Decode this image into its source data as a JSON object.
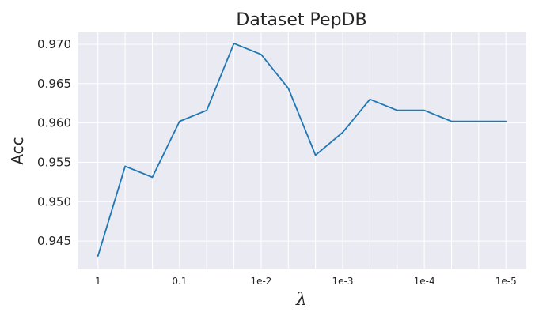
{
  "chart_data": {
    "type": "line",
    "title": "Dataset PepDB",
    "xlabel": "λ",
    "ylabel": "Acc",
    "x_ticks": [
      "1",
      "0.1",
      "1e-2",
      "1e-3",
      "1e-4",
      "1e-5"
    ],
    "x_tick_positions": [
      1,
      4,
      7,
      10,
      13,
      16
    ],
    "ylim": [
      0.9415,
      0.9715
    ],
    "y_ticks": [
      0.945,
      0.95,
      0.955,
      0.96,
      0.965,
      0.97
    ],
    "y_tick_labels": [
      "0.945",
      "0.950",
      "0.955",
      "0.960",
      "0.965",
      "0.970"
    ],
    "grid": true,
    "colors": {
      "background": "#eaeaf2",
      "grid": "#ffffff",
      "line": "#1f77b4"
    },
    "series": [
      {
        "x": [
          1,
          2,
          3,
          4,
          5,
          6,
          7,
          8,
          9,
          10,
          11,
          12,
          13,
          14,
          15,
          16
        ],
        "values": [
          0.9431,
          0.9545,
          0.9531,
          0.9602,
          0.9616,
          0.9701,
          0.9687,
          0.9644,
          0.9559,
          0.9588,
          0.963,
          0.9616,
          0.9616,
          0.9602,
          0.9602,
          0.9602
        ]
      }
    ]
  }
}
